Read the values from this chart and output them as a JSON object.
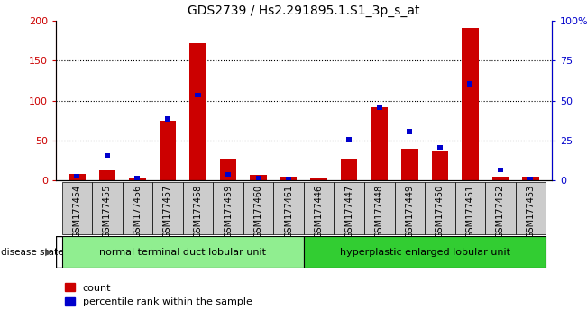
{
  "title": "GDS2739 / Hs2.291895.1.S1_3p_s_at",
  "samples": [
    "GSM177454",
    "GSM177455",
    "GSM177456",
    "GSM177457",
    "GSM177458",
    "GSM177459",
    "GSM177460",
    "GSM177461",
    "GSM177446",
    "GSM177447",
    "GSM177448",
    "GSM177449",
    "GSM177450",
    "GSM177451",
    "GSM177452",
    "GSM177453"
  ],
  "counts": [
    8,
    13,
    3,
    75,
    172,
    27,
    7,
    5,
    3,
    27,
    92,
    40,
    36,
    191,
    5,
    4
  ],
  "percentiles": [
    4,
    17,
    3,
    40,
    55,
    5,
    3,
    2,
    0,
    27,
    47,
    32,
    22,
    62,
    8,
    2
  ],
  "group1_label": "normal terminal duct lobular unit",
  "group2_label": "hyperplastic enlarged lobular unit",
  "group1_color": "#90ee90",
  "group2_color": "#32cd32",
  "bar_color_red": "#cc0000",
  "bar_color_blue": "#0000cc",
  "ylim_left": [
    0,
    200
  ],
  "ylim_right": [
    0,
    100
  ],
  "yticks_left": [
    0,
    50,
    100,
    150,
    200
  ],
  "yticks_right": [
    0,
    25,
    50,
    75,
    100
  ],
  "ytick_labels_right": [
    "0",
    "25",
    "50",
    "75",
    "100%"
  ],
  "legend_count": "count",
  "legend_pct": "percentile rank within the sample",
  "disease_state_label": "disease state",
  "title_fontsize": 10,
  "tick_label_fontsize": 7
}
